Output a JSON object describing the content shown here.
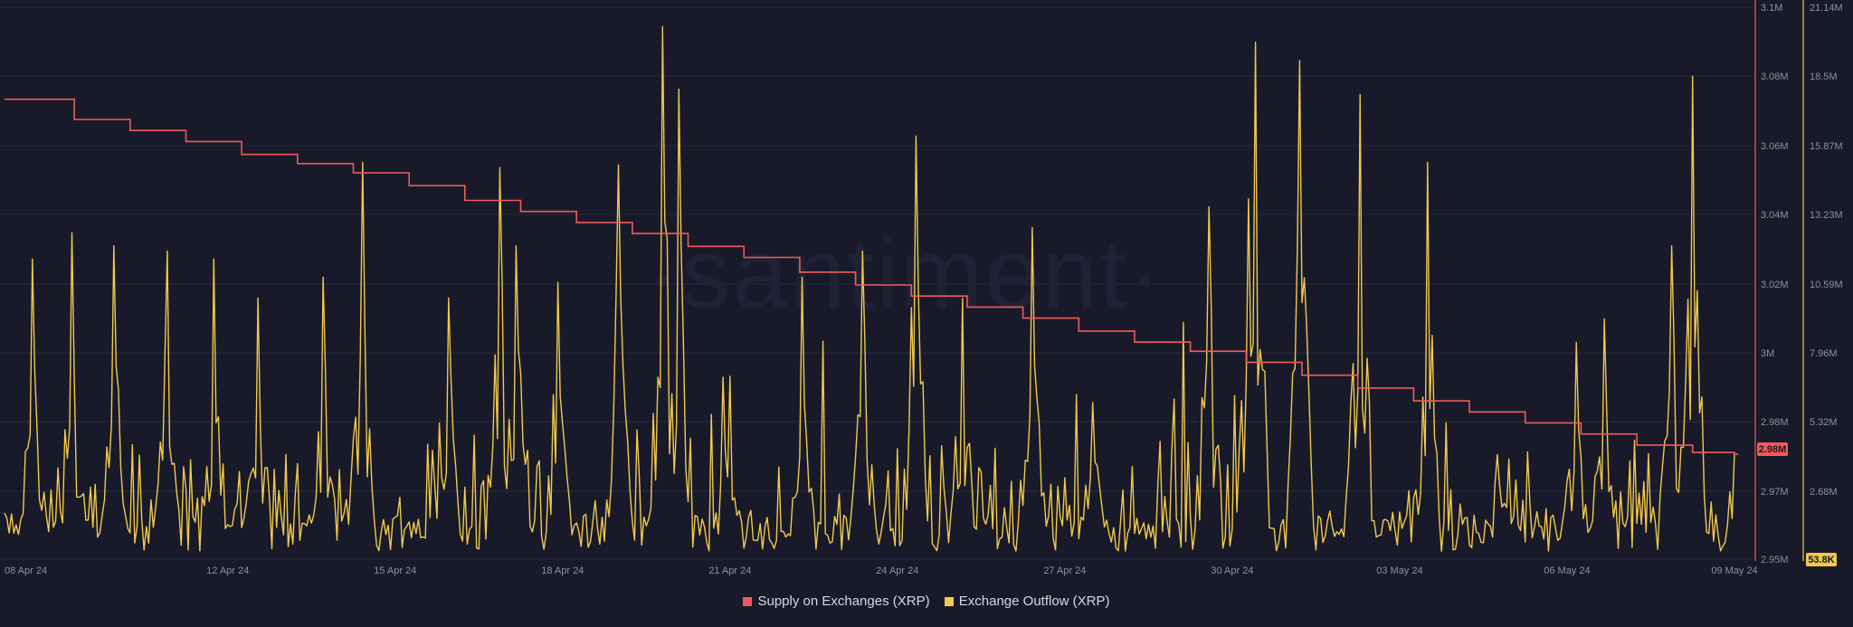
{
  "watermark": "·santiment·",
  "colors": {
    "background": "#181a2a",
    "supply": "#f05a5a",
    "outflow": "#f2c94c",
    "grid": "#262a3d",
    "tick": "#8a8fa3"
  },
  "legend": {
    "supply": "Supply on Exchanges (XRP)",
    "outflow": "Exchange Outflow (XRP)"
  },
  "badges": {
    "supply": "2.98M",
    "outflow": "53.8K"
  },
  "chart_data": {
    "type": "line",
    "x_ticks": [
      "08 Apr 24",
      "12 Apr 24",
      "15 Apr 24",
      "18 Apr 24",
      "21 Apr 24",
      "24 Apr 24",
      "27 Apr 24",
      "30 Apr 24",
      "03 May 24",
      "06 May 24",
      "09 May 24"
    ],
    "x_range": [
      "2024-04-08",
      "2024-05-09"
    ],
    "left_axis_ticks": [
      "3.1M",
      "3.08M",
      "3.06M",
      "3.04M",
      "3.02M",
      "3M",
      "2.98M",
      "2.97M",
      "2.95M"
    ],
    "right_axis_ticks": [
      "21.14M",
      "18.5M",
      "15.87M",
      "13.23M",
      "10.59M",
      "7.96M",
      "5.32M",
      "2.68M"
    ],
    "supply_ylim": [
      2950000,
      3100000
    ],
    "outflow_ylim": [
      0,
      21140000
    ],
    "grid": true,
    "legend_position": "bottom-center",
    "series": [
      {
        "name": "Supply on Exchanges (XRP)",
        "axis": "left",
        "step": true,
        "points": [
          [
            "2024-04-08T00:00",
            3075000
          ],
          [
            "2024-04-09T06:00",
            3069500
          ],
          [
            "2024-04-10T06:00",
            3066500
          ],
          [
            "2024-04-11T06:00",
            3063500
          ],
          [
            "2024-04-12T06:00",
            3060000
          ],
          [
            "2024-04-13T06:00",
            3057500
          ],
          [
            "2024-04-14T06:00",
            3055000
          ],
          [
            "2024-04-15T06:00",
            3051500
          ],
          [
            "2024-04-16T06:00",
            3047500
          ],
          [
            "2024-04-17T06:00",
            3044500
          ],
          [
            "2024-04-18T06:00",
            3041500
          ],
          [
            "2024-04-19T06:00",
            3038500
          ],
          [
            "2024-04-20T06:00",
            3035000
          ],
          [
            "2024-04-21T06:00",
            3032000
          ],
          [
            "2024-04-22T06:00",
            3028000
          ],
          [
            "2024-04-23T06:00",
            3024500
          ],
          [
            "2024-04-24T06:00",
            3021500
          ],
          [
            "2024-04-25T06:00",
            3018500
          ],
          [
            "2024-04-26T06:00",
            3015500
          ],
          [
            "2024-04-27T06:00",
            3012000
          ],
          [
            "2024-04-28T06:00",
            3009000
          ],
          [
            "2024-04-29T06:00",
            3006500
          ],
          [
            "2024-04-30T06:00",
            3003500
          ],
          [
            "2024-05-01T06:00",
            3000000
          ],
          [
            "2024-05-02T06:00",
            2996500
          ],
          [
            "2024-05-03T06:00",
            2993000
          ],
          [
            "2024-05-04T06:00",
            2990000
          ],
          [
            "2024-05-05T06:00",
            2987000
          ],
          [
            "2024-05-06T06:00",
            2984000
          ],
          [
            "2024-05-07T06:00",
            2981000
          ],
          [
            "2024-05-08T06:00",
            2979000
          ],
          [
            "2024-05-09T00:00",
            2978500
          ]
        ]
      },
      {
        "name": "Exchange Outflow (XRP)",
        "axis": "right",
        "interval_hours": 1,
        "start": "2024-04-08T00:00",
        "end": "2024-05-09T00:00",
        "peaks": [
          [
            "2024-04-08T12:00",
            11500000
          ],
          [
            "2024-04-09T05:00",
            12500000
          ],
          [
            "2024-04-09T23:00",
            12000000
          ],
          [
            "2024-04-10T22:00",
            11800000
          ],
          [
            "2024-04-11T18:00",
            11500000
          ],
          [
            "2024-04-12T13:00",
            10000000
          ],
          [
            "2024-04-13T17:00",
            10800000
          ],
          [
            "2024-04-14T10:00",
            15200000
          ],
          [
            "2024-04-15T23:00",
            10000000
          ],
          [
            "2024-04-16T21:00",
            15000000
          ],
          [
            "2024-04-17T04:00",
            12000000
          ],
          [
            "2024-04-17T22:00",
            10600000
          ],
          [
            "2024-04-19T00:00",
            15100000
          ],
          [
            "2024-04-19T19:00",
            20400000
          ],
          [
            "2024-04-20T02:00",
            18000000
          ],
          [
            "2024-04-21T00:00",
            7000000
          ],
          [
            "2024-04-22T07:00",
            10800000
          ],
          [
            "2024-04-23T09:00",
            11800000
          ],
          [
            "2024-04-24T08:00",
            16200000
          ],
          [
            "2024-04-25T04:00",
            10000000
          ],
          [
            "2024-04-26T10:00",
            12700000
          ],
          [
            "2024-04-27T12:00",
            6000000
          ],
          [
            "2024-04-29T14:00",
            13500000
          ],
          [
            "2024-04-30T07:00",
            13800000
          ],
          [
            "2024-04-30T10:00",
            19800000
          ],
          [
            "2024-05-01T05:00",
            19100000
          ],
          [
            "2024-05-02T07:00",
            17800000
          ],
          [
            "2024-05-03T12:00",
            15200000
          ],
          [
            "2024-05-04T18:00",
            4000000
          ],
          [
            "2024-05-06T04:00",
            8300000
          ],
          [
            "2024-05-06T16:00",
            9200000
          ],
          [
            "2024-05-07T21:00",
            12000000
          ],
          [
            "2024-05-08T06:00",
            18500000
          ]
        ]
      }
    ]
  }
}
